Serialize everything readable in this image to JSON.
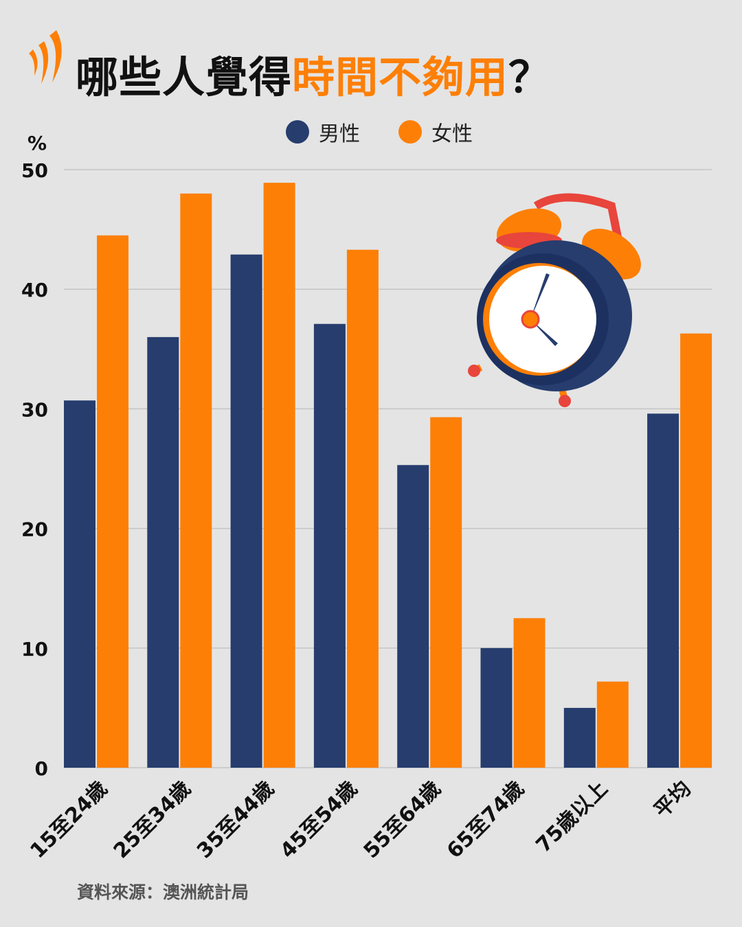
{
  "title": {
    "part1": "哪些人覺得",
    "part2": "時間不夠用",
    "part3": "？"
  },
  "source": "資料來源：澳洲統計局",
  "colors": {
    "male": "#263d6e",
    "female": "#fd7f06",
    "grid": "#c4c4c4"
  },
  "chart_data": {
    "type": "bar",
    "title": "哪些人覺得時間不夠用？",
    "ylabel": "%",
    "xlabel": "",
    "ylim": [
      0,
      50
    ],
    "yticks": [
      "0",
      "10",
      "20",
      "30",
      "40",
      "50"
    ],
    "grid": true,
    "legend_position": "top-center",
    "categories": [
      "15至24歲",
      "25至34歲",
      "35至44歲",
      "45至54歲",
      "55至64歲",
      "65至74歲",
      "75歲以上",
      "平均"
    ],
    "series": [
      {
        "name": "男性",
        "values": [
          30.7,
          36.0,
          42.9,
          37.1,
          25.3,
          10.0,
          5.0,
          29.6
        ]
      },
      {
        "name": "女性",
        "values": [
          44.5,
          48.0,
          48.9,
          43.3,
          29.3,
          12.5,
          7.2,
          36.3
        ]
      }
    ]
  }
}
